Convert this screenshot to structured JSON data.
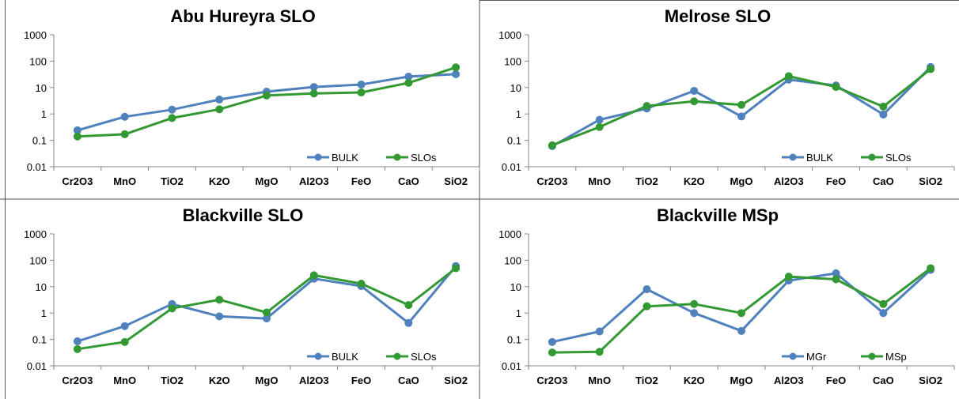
{
  "colors": {
    "series_a": "#4F81BD",
    "series_b": "#339933",
    "axis": "#868686",
    "frame": "#555555",
    "text": "#000000"
  },
  "chart_data": [
    {
      "type": "line",
      "title": "Abu Hureyra SLO",
      "categories": [
        "Cr2O3",
        "MnO",
        "TiO2",
        "K2O",
        "MgO",
        "Al2O3",
        "FeO",
        "CaO",
        "SiO2"
      ],
      "y_scale": "log",
      "ylim": [
        0.01,
        1000
      ],
      "y_ticks": [
        "0.01",
        "0.1",
        "1",
        "10",
        "100",
        "1000"
      ],
      "grid": false,
      "legend": "bottom-right",
      "series": [
        {
          "name": "BULK",
          "color": "#4F81BD",
          "values": [
            0.24,
            0.78,
            1.45,
            3.5,
            7,
            10.5,
            13,
            26,
            32
          ]
        },
        {
          "name": "SLOs",
          "color": "#339933",
          "values": [
            0.14,
            0.17,
            0.7,
            1.5,
            5,
            6,
            6.5,
            15,
            58
          ]
        }
      ]
    },
    {
      "type": "line",
      "title": "Melrose SLO",
      "categories": [
        "Cr2O3",
        "MnO",
        "TiO2",
        "K2O",
        "MgO",
        "Al2O3",
        "FeO",
        "CaO",
        "SiO2"
      ],
      "y_scale": "log",
      "ylim": [
        0.01,
        1000
      ],
      "y_ticks": [
        "0.01",
        "0.1",
        "1",
        "10",
        "100",
        "1000"
      ],
      "grid": false,
      "legend": "bottom-right",
      "series": [
        {
          "name": "BULK",
          "color": "#4F81BD",
          "values": [
            0.06,
            0.6,
            1.6,
            7.5,
            0.8,
            20,
            12,
            0.95,
            60
          ]
        },
        {
          "name": "SLOs",
          "color": "#339933",
          "values": [
            0.065,
            0.32,
            2,
            3,
            2.2,
            27,
            10.5,
            1.9,
            50
          ]
        }
      ]
    },
    {
      "type": "line",
      "title": "Blackville SLO",
      "categories": [
        "Cr2O3",
        "MnO",
        "TiO2",
        "K2O",
        "MgO",
        "Al2O3",
        "FeO",
        "CaO",
        "SiO2"
      ],
      "y_scale": "log",
      "ylim": [
        0.01,
        1000
      ],
      "y_ticks": [
        "0.01",
        "0.1",
        "1",
        "10",
        "100",
        "1000"
      ],
      "grid": false,
      "legend": "bottom-right",
      "series": [
        {
          "name": "BULK",
          "color": "#4F81BD",
          "values": [
            0.085,
            0.32,
            2.2,
            0.75,
            0.62,
            20,
            10.5,
            0.42,
            60
          ]
        },
        {
          "name": "SLOs",
          "color": "#339933",
          "values": [
            0.043,
            0.08,
            1.5,
            3.2,
            1.05,
            27,
            13,
            2,
            50
          ]
        }
      ]
    },
    {
      "type": "line",
      "title": "Blackville MSp",
      "categories": [
        "Cr2O3",
        "MnO",
        "TiO2",
        "K2O",
        "MgO",
        "Al2O3",
        "FeO",
        "CaO",
        "SiO2"
      ],
      "y_scale": "log",
      "ylim": [
        0.01,
        1000
      ],
      "y_ticks": [
        "0.01",
        "0.1",
        "1",
        "10",
        "100",
        "1000"
      ],
      "grid": false,
      "legend": "bottom-right",
      "series": [
        {
          "name": "MGr",
          "color": "#4F81BD",
          "values": [
            0.08,
            0.2,
            8,
            1,
            0.21,
            17,
            32,
            1,
            43
          ]
        },
        {
          "name": "MSp",
          "color": "#339933",
          "values": [
            0.032,
            0.034,
            1.8,
            2.2,
            1,
            24,
            19,
            2.2,
            50
          ]
        }
      ]
    }
  ]
}
